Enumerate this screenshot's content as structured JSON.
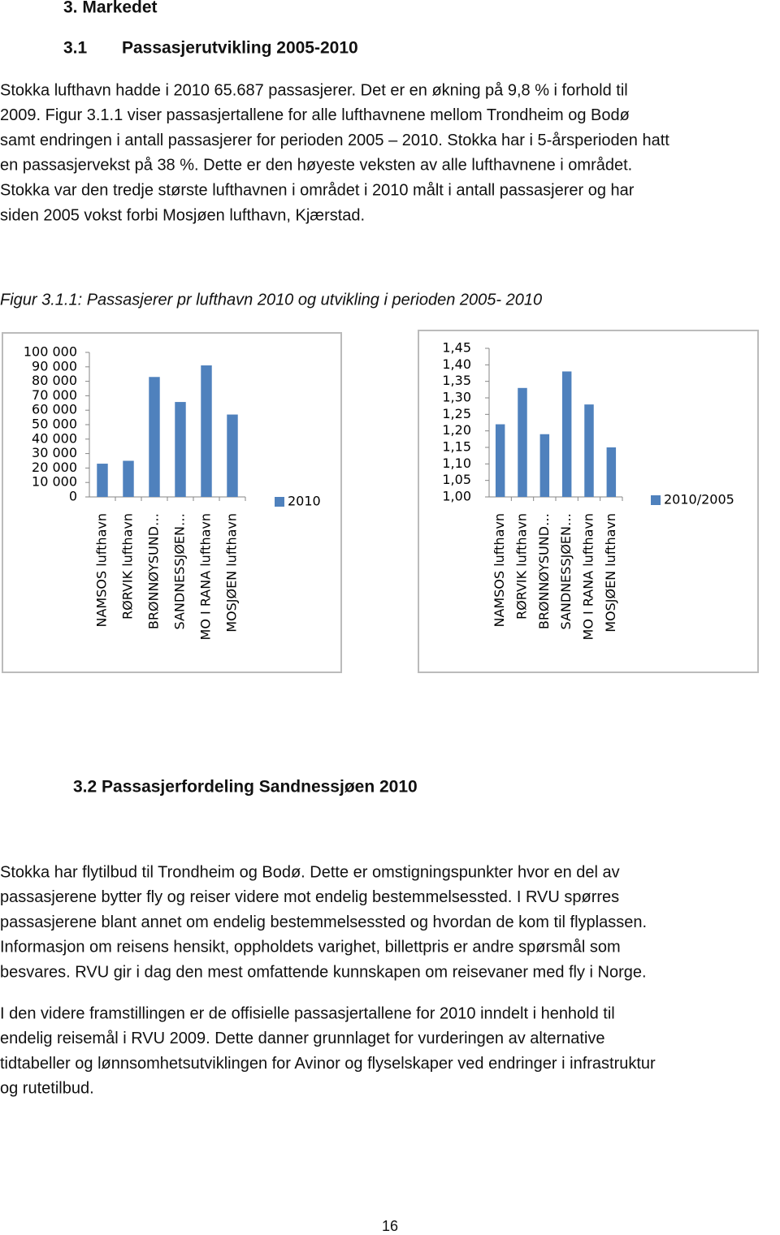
{
  "headings": {
    "section": "3. Markedet",
    "subsection_number": "3.1",
    "subsection_title": "Passasjerutvikling 2005-2010"
  },
  "paragraph1": [
    "Stokka lufthavn hadde i 2010 65.687 passasjerer. Det er en økning på 9,8 % i forhold til",
    "2009. Figur 3.1.1 viser passasjertallene for alle lufthavnene mellom Trondheim og Bodø",
    "samt endringen i antall passasjerer for perioden 2005 – 2010. Stokka har i 5-årsperioden hatt",
    "en passasjervekst på 38 %. Dette er den høyeste veksten av alle lufthavnene i området.",
    "Stokka var den tredje største lufthavnen i området i 2010 målt i antall passasjerer og har",
    "siden 2005 vokst forbi Mosjøen lufthavn, Kjærstad."
  ],
  "figure_caption": "Figur 3.1.1: Passasjerer pr lufthavn 2010 og utvikling i perioden 2005- 2010",
  "chart_data": [
    {
      "type": "bar",
      "categories": [
        "NAMSOS lufthavn",
        "RØRVIK lufthavn",
        "BRØNNØYSUND…",
        "SANDNESSJØEN…",
        "MO I RANA lufthavn",
        "MOSJØEN lufthavn"
      ],
      "series": [
        {
          "name": "2010",
          "color": "#4f81bd",
          "values": [
            23000,
            25000,
            83000,
            65687,
            91000,
            57000
          ]
        }
      ],
      "ylim": [
        0,
        100000
      ],
      "yticks": [
        0,
        {
          "value": 10000,
          "label": "10 000"
        },
        {
          "value": 20000,
          "label": "20 000"
        },
        {
          "value": 30000,
          "label": "30 000"
        },
        {
          "value": 40000,
          "label": "40 000"
        },
        {
          "value": 50000,
          "label": "50 000"
        },
        {
          "value": 60000,
          "label": "60 000"
        },
        {
          "value": 70000,
          "label": "70 000"
        },
        {
          "value": 80000,
          "label": "80 000"
        },
        {
          "value": 90000,
          "label": "90 000"
        },
        {
          "value": 100000,
          "label": "100 000"
        }
      ],
      "legend": "right"
    },
    {
      "type": "bar",
      "categories": [
        "NAMSOS lufthavn",
        "RØRVIK lufthavn",
        "BRØNNØYSUND…",
        "SANDNESSJØEN…",
        "MO I RANA lufthavn",
        "MOSJØEN lufthavn"
      ],
      "series": [
        {
          "name": "2010/2005",
          "color": "#4f81bd",
          "values": [
            1.22,
            1.33,
            1.19,
            1.38,
            1.28,
            1.15
          ]
        }
      ],
      "ylim": [
        1.0,
        1.45
      ],
      "yticks": [
        {
          "value": 1.0,
          "label": "1,00"
        },
        {
          "value": 1.05,
          "label": "1,05"
        },
        {
          "value": 1.1,
          "label": "1,10"
        },
        {
          "value": 1.15,
          "label": "1,15"
        },
        {
          "value": 1.2,
          "label": "1,20"
        },
        {
          "value": 1.25,
          "label": "1,25"
        },
        {
          "value": 1.3,
          "label": "1,30"
        },
        {
          "value": 1.35,
          "label": "1,35"
        },
        {
          "value": 1.4,
          "label": "1,40"
        },
        {
          "value": 1.45,
          "label": "1,45"
        }
      ],
      "legend": "right"
    }
  ],
  "section_3_2": "3.2 Passasjerfordeling Sandnessjøen 2010",
  "paragraph2": [
    "Stokka har flytilbud til Trondheim og Bodø. Dette er omstigningspunkter hvor en del av",
    "passasjerene bytter fly og reiser videre mot endelig bestemmelsessted. I RVU spørres",
    "passasjerene blant annet om endelig bestemmelsessted og hvordan de kom til flyplassen.",
    "Informasjon om reisens hensikt, oppholdets varighet, billettpris er andre spørsmål som",
    "besvares. RVU gir i dag den mest omfattende kunnskapen om reisevaner med fly i Norge."
  ],
  "paragraph3": [
    "I den videre framstillingen er de offisielle passasjertallene for 2010 inndelt i henhold til",
    "endelig reisemål i RVU 2009. Dette danner grunnlaget for vurderingen av alternative",
    "tidtabeller og lønnsomhetsutviklingen for Avinor og flyselskaper ved endringer i infrastruktur",
    "og rutetilbud."
  ],
  "page_number": "16"
}
